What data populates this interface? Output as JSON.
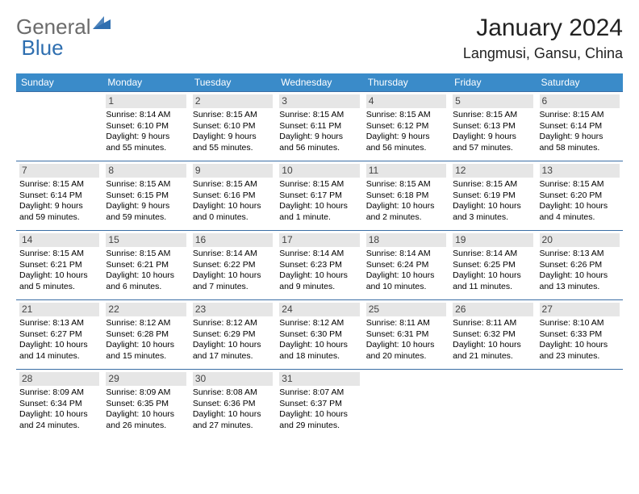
{
  "logo": {
    "general": "General",
    "blue": "Blue",
    "mark_color": "#2f6fb0"
  },
  "title": "January 2024",
  "location": "Langmusi, Gansu, China",
  "colors": {
    "header_bg": "#3a8bc9",
    "header_text": "#ffffff",
    "row_border": "#3a6ea5",
    "daynum_bg": "#e6e6e6",
    "daynum_text": "#444444",
    "body_text": "#000000",
    "background": "#ffffff"
  },
  "weekdays": [
    "Sunday",
    "Monday",
    "Tuesday",
    "Wednesday",
    "Thursday",
    "Friday",
    "Saturday"
  ],
  "weeks": [
    [
      null,
      {
        "num": "1",
        "sunrise": "Sunrise: 8:14 AM",
        "sunset": "Sunset: 6:10 PM",
        "daylight1": "Daylight: 9 hours",
        "daylight2": "and 55 minutes."
      },
      {
        "num": "2",
        "sunrise": "Sunrise: 8:15 AM",
        "sunset": "Sunset: 6:10 PM",
        "daylight1": "Daylight: 9 hours",
        "daylight2": "and 55 minutes."
      },
      {
        "num": "3",
        "sunrise": "Sunrise: 8:15 AM",
        "sunset": "Sunset: 6:11 PM",
        "daylight1": "Daylight: 9 hours",
        "daylight2": "and 56 minutes."
      },
      {
        "num": "4",
        "sunrise": "Sunrise: 8:15 AM",
        "sunset": "Sunset: 6:12 PM",
        "daylight1": "Daylight: 9 hours",
        "daylight2": "and 56 minutes."
      },
      {
        "num": "5",
        "sunrise": "Sunrise: 8:15 AM",
        "sunset": "Sunset: 6:13 PM",
        "daylight1": "Daylight: 9 hours",
        "daylight2": "and 57 minutes."
      },
      {
        "num": "6",
        "sunrise": "Sunrise: 8:15 AM",
        "sunset": "Sunset: 6:14 PM",
        "daylight1": "Daylight: 9 hours",
        "daylight2": "and 58 minutes."
      }
    ],
    [
      {
        "num": "7",
        "sunrise": "Sunrise: 8:15 AM",
        "sunset": "Sunset: 6:14 PM",
        "daylight1": "Daylight: 9 hours",
        "daylight2": "and 59 minutes."
      },
      {
        "num": "8",
        "sunrise": "Sunrise: 8:15 AM",
        "sunset": "Sunset: 6:15 PM",
        "daylight1": "Daylight: 9 hours",
        "daylight2": "and 59 minutes."
      },
      {
        "num": "9",
        "sunrise": "Sunrise: 8:15 AM",
        "sunset": "Sunset: 6:16 PM",
        "daylight1": "Daylight: 10 hours",
        "daylight2": "and 0 minutes."
      },
      {
        "num": "10",
        "sunrise": "Sunrise: 8:15 AM",
        "sunset": "Sunset: 6:17 PM",
        "daylight1": "Daylight: 10 hours",
        "daylight2": "and 1 minute."
      },
      {
        "num": "11",
        "sunrise": "Sunrise: 8:15 AM",
        "sunset": "Sunset: 6:18 PM",
        "daylight1": "Daylight: 10 hours",
        "daylight2": "and 2 minutes."
      },
      {
        "num": "12",
        "sunrise": "Sunrise: 8:15 AM",
        "sunset": "Sunset: 6:19 PM",
        "daylight1": "Daylight: 10 hours",
        "daylight2": "and 3 minutes."
      },
      {
        "num": "13",
        "sunrise": "Sunrise: 8:15 AM",
        "sunset": "Sunset: 6:20 PM",
        "daylight1": "Daylight: 10 hours",
        "daylight2": "and 4 minutes."
      }
    ],
    [
      {
        "num": "14",
        "sunrise": "Sunrise: 8:15 AM",
        "sunset": "Sunset: 6:21 PM",
        "daylight1": "Daylight: 10 hours",
        "daylight2": "and 5 minutes."
      },
      {
        "num": "15",
        "sunrise": "Sunrise: 8:15 AM",
        "sunset": "Sunset: 6:21 PM",
        "daylight1": "Daylight: 10 hours",
        "daylight2": "and 6 minutes."
      },
      {
        "num": "16",
        "sunrise": "Sunrise: 8:14 AM",
        "sunset": "Sunset: 6:22 PM",
        "daylight1": "Daylight: 10 hours",
        "daylight2": "and 7 minutes."
      },
      {
        "num": "17",
        "sunrise": "Sunrise: 8:14 AM",
        "sunset": "Sunset: 6:23 PM",
        "daylight1": "Daylight: 10 hours",
        "daylight2": "and 9 minutes."
      },
      {
        "num": "18",
        "sunrise": "Sunrise: 8:14 AM",
        "sunset": "Sunset: 6:24 PM",
        "daylight1": "Daylight: 10 hours",
        "daylight2": "and 10 minutes."
      },
      {
        "num": "19",
        "sunrise": "Sunrise: 8:14 AM",
        "sunset": "Sunset: 6:25 PM",
        "daylight1": "Daylight: 10 hours",
        "daylight2": "and 11 minutes."
      },
      {
        "num": "20",
        "sunrise": "Sunrise: 8:13 AM",
        "sunset": "Sunset: 6:26 PM",
        "daylight1": "Daylight: 10 hours",
        "daylight2": "and 13 minutes."
      }
    ],
    [
      {
        "num": "21",
        "sunrise": "Sunrise: 8:13 AM",
        "sunset": "Sunset: 6:27 PM",
        "daylight1": "Daylight: 10 hours",
        "daylight2": "and 14 minutes."
      },
      {
        "num": "22",
        "sunrise": "Sunrise: 8:12 AM",
        "sunset": "Sunset: 6:28 PM",
        "daylight1": "Daylight: 10 hours",
        "daylight2": "and 15 minutes."
      },
      {
        "num": "23",
        "sunrise": "Sunrise: 8:12 AM",
        "sunset": "Sunset: 6:29 PM",
        "daylight1": "Daylight: 10 hours",
        "daylight2": "and 17 minutes."
      },
      {
        "num": "24",
        "sunrise": "Sunrise: 8:12 AM",
        "sunset": "Sunset: 6:30 PM",
        "daylight1": "Daylight: 10 hours",
        "daylight2": "and 18 minutes."
      },
      {
        "num": "25",
        "sunrise": "Sunrise: 8:11 AM",
        "sunset": "Sunset: 6:31 PM",
        "daylight1": "Daylight: 10 hours",
        "daylight2": "and 20 minutes."
      },
      {
        "num": "26",
        "sunrise": "Sunrise: 8:11 AM",
        "sunset": "Sunset: 6:32 PM",
        "daylight1": "Daylight: 10 hours",
        "daylight2": "and 21 minutes."
      },
      {
        "num": "27",
        "sunrise": "Sunrise: 8:10 AM",
        "sunset": "Sunset: 6:33 PM",
        "daylight1": "Daylight: 10 hours",
        "daylight2": "and 23 minutes."
      }
    ],
    [
      {
        "num": "28",
        "sunrise": "Sunrise: 8:09 AM",
        "sunset": "Sunset: 6:34 PM",
        "daylight1": "Daylight: 10 hours",
        "daylight2": "and 24 minutes."
      },
      {
        "num": "29",
        "sunrise": "Sunrise: 8:09 AM",
        "sunset": "Sunset: 6:35 PM",
        "daylight1": "Daylight: 10 hours",
        "daylight2": "and 26 minutes."
      },
      {
        "num": "30",
        "sunrise": "Sunrise: 8:08 AM",
        "sunset": "Sunset: 6:36 PM",
        "daylight1": "Daylight: 10 hours",
        "daylight2": "and 27 minutes."
      },
      {
        "num": "31",
        "sunrise": "Sunrise: 8:07 AM",
        "sunset": "Sunset: 6:37 PM",
        "daylight1": "Daylight: 10 hours",
        "daylight2": "and 29 minutes."
      },
      null,
      null,
      null
    ]
  ]
}
